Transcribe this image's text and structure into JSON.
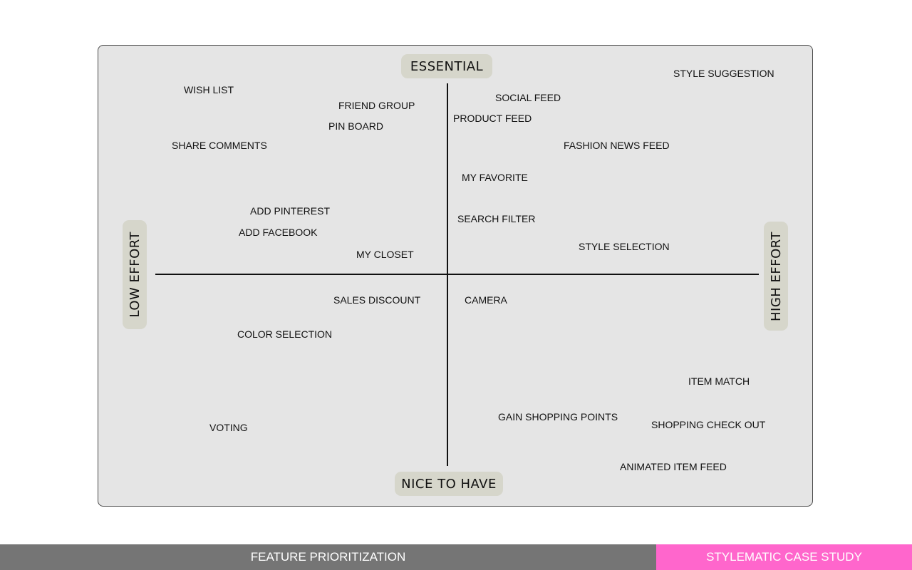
{
  "axes": {
    "top": "ESSENTIAL",
    "bottom": "NICE TO HAVE",
    "left": "LOW EFFORT",
    "right": "HIGH EFFORT"
  },
  "features": [
    "STYLE SUGGESTION",
    "WISH LIST",
    "FRIEND GROUP",
    "SOCIAL FEED",
    "PRODUCT FEED",
    "PIN BOARD",
    "SHARE COMMENTS",
    "FASHION NEWS FEED",
    "MY FAVORITE",
    "ADD PINTEREST",
    "SEARCH FILTER",
    "ADD FACEBOOK",
    "STYLE SELECTION",
    "MY CLOSET",
    "SALES DISCOUNT",
    "CAMERA",
    "COLOR SELECTION",
    "ITEM MATCH",
    "GAIN SHOPPING POINTS",
    "SHOPPING CHECK OUT",
    "VOTING",
    "ANIMATED ITEM FEED"
  ],
  "footer": {
    "section_title": "FEATURE PRIORITIZATION",
    "project_title": "STYLEMATIC CASE STUDY"
  },
  "colors": {
    "panel": "#e5e5e5",
    "pill": "#d6d6cb",
    "footer_gray": "#757575",
    "footer_pink": "#ff66cc"
  }
}
